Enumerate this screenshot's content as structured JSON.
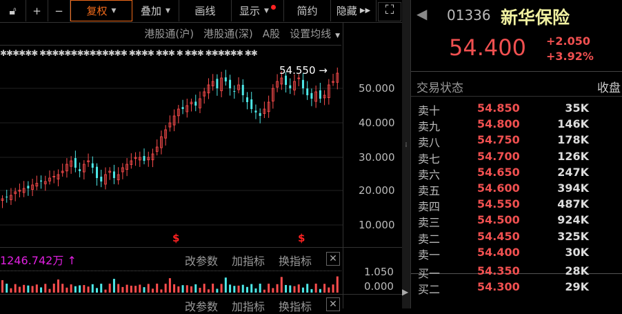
{
  "toolbar": {
    "items": [
      {
        "label": "",
        "icon": "unlock-icon"
      },
      {
        "label": "+"
      },
      {
        "label": "−"
      },
      {
        "label": "复权",
        "active": true,
        "dropdown": true
      },
      {
        "label": "叠加",
        "dropdown": true
      },
      {
        "label": "画线"
      },
      {
        "label": "显示",
        "dropdown": true,
        "dot": true
      },
      {
        "label": "简约"
      },
      {
        "label": "隐藏",
        "more": true
      }
    ]
  },
  "subbar": [
    "港股通(沪)",
    "港股通(深)",
    "A股",
    "设置均线"
  ],
  "price_axis": [
    "50.000",
    "40.000",
    "30.000",
    "20.000",
    "10.000"
  ],
  "last_price_label": "54.550",
  "volume": {
    "value": "1246.742万",
    "arrow": "↑",
    "axis": [
      "1.050",
      "0.000"
    ]
  },
  "indicator_buttons": [
    "改参数",
    "加指标",
    "换指标"
  ],
  "quote": {
    "code": "01336",
    "name": "新华保险",
    "price": "54.400",
    "change": "+2.050",
    "pct": "+3.92%",
    "status_label": "交易状态",
    "status_value": "收盘"
  },
  "orderbook": [
    {
      "n": "卖十",
      "p": "54.850",
      "v": "35K"
    },
    {
      "n": "卖九",
      "p": "54.800",
      "v": "146K"
    },
    {
      "n": "卖八",
      "p": "54.750",
      "v": "178K"
    },
    {
      "n": "卖七",
      "p": "54.700",
      "v": "126K"
    },
    {
      "n": "卖六",
      "p": "54.650",
      "v": "247K"
    },
    {
      "n": "卖五",
      "p": "54.600",
      "v": "394K"
    },
    {
      "n": "卖四",
      "p": "54.550",
      "v": "487K"
    },
    {
      "n": "卖三",
      "p": "54.500",
      "v": "924K"
    },
    {
      "n": "卖二",
      "p": "54.450",
      "v": "325K"
    },
    {
      "n": "卖一",
      "p": "54.400",
      "v": "30K"
    },
    {
      "n": "买一",
      "p": "54.350",
      "v": "28K"
    },
    {
      "n": "买二",
      "p": "54.300",
      "v": "29K"
    }
  ],
  "chart_data": {
    "type": "candlestick",
    "closes": [
      18,
      18.5,
      19,
      20,
      20.5,
      21,
      21,
      22,
      22.5,
      23,
      23,
      24,
      24.5,
      25,
      26,
      28,
      29,
      27,
      26,
      28,
      29,
      27,
      24,
      23,
      25,
      26,
      24,
      25,
      27,
      28,
      29,
      30,
      30,
      29,
      30,
      31,
      33,
      36,
      38,
      40,
      42,
      44,
      44,
      45,
      46,
      45,
      47,
      49,
      51,
      52,
      50,
      53,
      52,
      50,
      49,
      51,
      48,
      46,
      44,
      43,
      42,
      44,
      46,
      50,
      52,
      53,
      51,
      50,
      52,
      53,
      50,
      48,
      47,
      49,
      47,
      48,
      51,
      52,
      54.4
    ],
    "ylim": [
      0,
      60
    ],
    "colors": {
      "up": "#ff4d4d",
      "down": "#4de8e8"
    }
  }
}
